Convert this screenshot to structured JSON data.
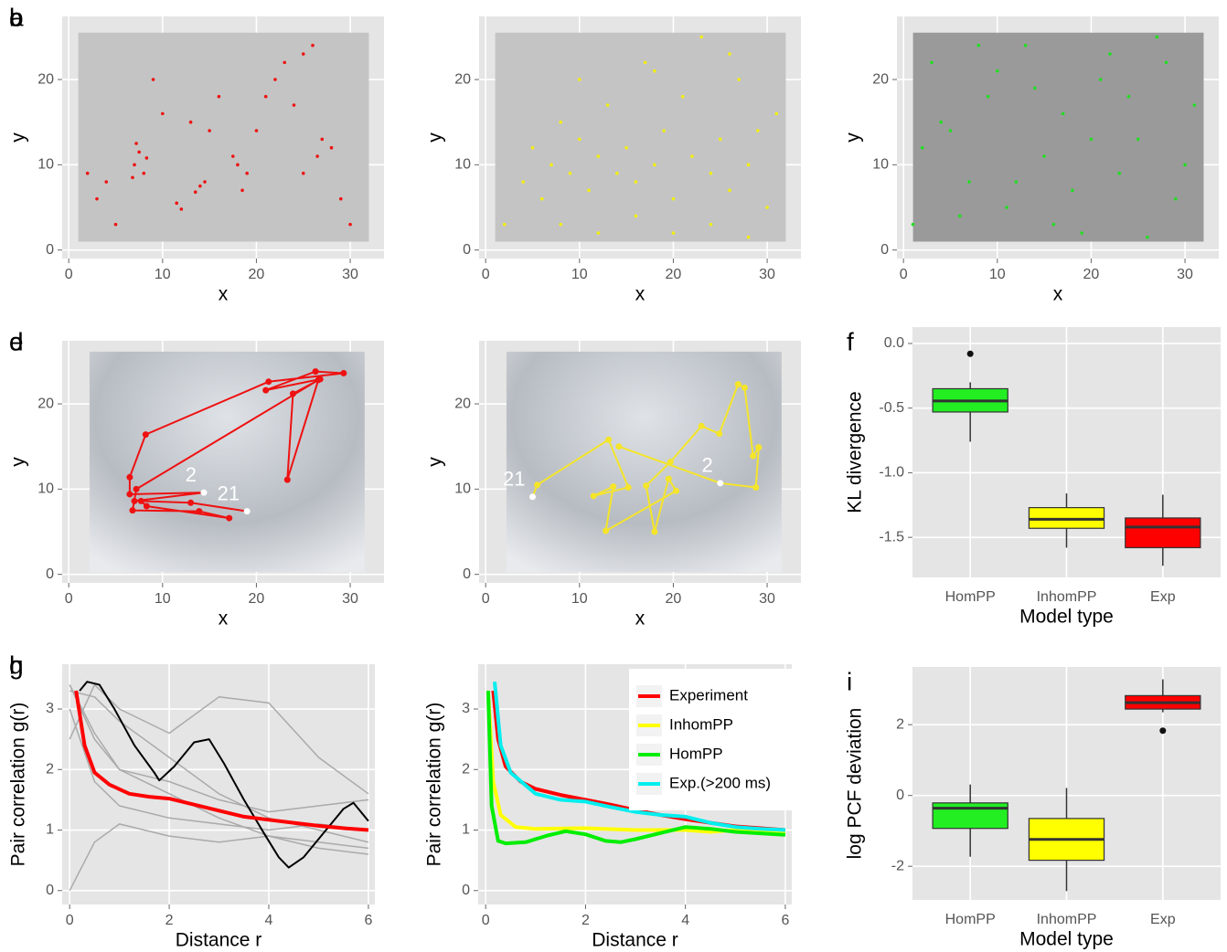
{
  "chart_data": [
    {
      "panel_label": "a",
      "type": "scatter",
      "x_label": "x",
      "y_label": "y",
      "color": "#ee1111",
      "xlim": [
        -0.7,
        33.6
      ],
      "ylim": [
        -1,
        27.4
      ],
      "xticks": [
        0,
        10,
        20,
        30
      ],
      "yticks": [
        0,
        10,
        20
      ],
      "grid": true,
      "x": [
        7,
        7.5,
        8,
        6.8,
        7.2,
        8.3,
        12,
        11.5,
        14,
        13.5,
        14.5,
        18,
        18.5,
        17.5,
        19,
        22,
        21,
        23,
        25,
        26,
        27,
        26.5,
        25,
        28,
        4,
        3,
        5,
        10,
        13,
        16,
        20,
        24,
        29,
        30,
        2,
        9,
        15
      ],
      "values": [
        10,
        11.5,
        9,
        8.5,
        12.5,
        10.8,
        4.8,
        5.5,
        7.5,
        6.8,
        8,
        10,
        7,
        11,
        9,
        20,
        18,
        22,
        23,
        24,
        13,
        11,
        9,
        12,
        8,
        6,
        3,
        16,
        15,
        18,
        14,
        17,
        6,
        3,
        9,
        20,
        14
      ]
    },
    {
      "panel_label": "b",
      "type": "scatter",
      "x_label": "x",
      "y_label": "y",
      "color": "#f2ee10",
      "xlim": [
        -0.7,
        33.6
      ],
      "ylim": [
        -1,
        27.4
      ],
      "xticks": [
        0,
        10,
        20,
        30
      ],
      "yticks": [
        0,
        10,
        20
      ],
      "grid": true,
      "x": [
        2,
        4,
        5,
        6,
        7,
        8,
        9,
        10,
        11,
        12,
        13,
        14,
        15,
        16,
        17,
        18,
        19,
        20,
        21,
        22,
        23,
        24,
        25,
        26,
        27,
        28,
        29,
        30,
        31,
        8,
        12,
        16,
        20,
        24,
        28,
        10,
        18,
        26
      ],
      "values": [
        3,
        8,
        12,
        6,
        10,
        15,
        9,
        13,
        7,
        11,
        17,
        9,
        12,
        8,
        22,
        10,
        14,
        6,
        18,
        11,
        25,
        9,
        13,
        7,
        20,
        10,
        14,
        5,
        16,
        3,
        2,
        4,
        2,
        3,
        1.5,
        20,
        21,
        23
      ]
    },
    {
      "panel_label": "c",
      "type": "scatter",
      "x_label": "x",
      "y_label": "y",
      "color": "#22dd22",
      "xlim": [
        -0.7,
        33.6
      ],
      "ylim": [
        -1,
        27.4
      ],
      "xticks": [
        0,
        10,
        20,
        30
      ],
      "yticks": [
        0,
        10,
        20
      ],
      "grid": true,
      "x": [
        1,
        3,
        5,
        7,
        9,
        11,
        13,
        15,
        17,
        19,
        21,
        23,
        25,
        27,
        29,
        31,
        2,
        6,
        10,
        14,
        18,
        22,
        26,
        30,
        4,
        8,
        12,
        16,
        20,
        24,
        28
      ],
      "values": [
        3,
        22,
        14,
        8,
        18,
        5,
        24,
        11,
        16,
        2,
        20,
        9,
        13,
        25,
        6,
        17,
        12,
        4,
        21,
        19,
        7,
        23,
        1.5,
        10,
        15,
        24,
        8,
        3,
        13,
        18,
        22
      ]
    },
    {
      "panel_label": "d",
      "type": "scanpath",
      "x_label": "x",
      "y_label": "y",
      "color": "#ee1111",
      "xlim": [
        -0.7,
        33.6
      ],
      "ylim": [
        -1,
        27.4
      ],
      "xticks": [
        0,
        10,
        20,
        30
      ],
      "yticks": [
        0,
        10,
        20
      ],
      "grid": true,
      "x": [
        7,
        14.4,
        6.5,
        6.5,
        8.2,
        21.3,
        29.3,
        26.3,
        21,
        26.8,
        23.9,
        23.3,
        26.6,
        7.2,
        6.8,
        13.9,
        17.1,
        8.3,
        7.7,
        13,
        19
      ],
      "values": [
        8.6,
        9.6,
        9.4,
        11.4,
        16.4,
        22.6,
        23.6,
        23.8,
        21.6,
        22.9,
        21.2,
        11.1,
        22.8,
        10,
        7.5,
        7.4,
        6.6,
        8,
        8.6,
        8.4,
        7.4
      ],
      "annotations": [
        "2",
        "21"
      ]
    },
    {
      "panel_label": "e",
      "type": "scanpath",
      "x_label": "x",
      "y_label": "y",
      "color": "#f5e52a",
      "xlim": [
        -0.7,
        33.6
      ],
      "ylim": [
        -1,
        27.4
      ],
      "xticks": [
        0,
        10,
        20,
        30
      ],
      "yticks": [
        0,
        10,
        20
      ],
      "grid": true,
      "x": [
        14.2,
        25,
        28.8,
        29.1,
        28.5,
        27.6,
        26.9,
        24.9,
        23,
        19.7,
        17.1,
        18,
        19.5,
        20.3,
        12.8,
        13.6,
        11.5,
        15.2,
        13.1,
        5.5,
        5
      ],
      "values": [
        15,
        10.7,
        10.2,
        14.9,
        13.9,
        21.9,
        22.3,
        16.5,
        17.4,
        13.2,
        10.4,
        5,
        11.2,
        9.8,
        5.1,
        10.3,
        9.2,
        10.2,
        15.8,
        10.5,
        9.1
      ],
      "annotations": [
        "2",
        "21"
      ]
    },
    {
      "panel_label": "f",
      "type": "box",
      "x_label": "Model type",
      "y_label": "KL divergence",
      "ylim": [
        -1.81,
        0.127
      ],
      "yticks": [
        {
          "value": 0,
          "label": "0.0"
        },
        -0.5,
        {
          "value": -1,
          "label": "-1.0"
        },
        -1.5
      ],
      "grid": true,
      "categories": [
        "HomPP",
        "InhomPP",
        "Exp"
      ],
      "boxes": [
        {
          "color": "#22ee22",
          "whisker_low": -0.76,
          "q1": -0.53,
          "median": -0.445,
          "q3": -0.35,
          "whisker_high": -0.3,
          "outliers": [
            -0.08
          ]
        },
        {
          "color": "#ffff00",
          "whisker_low": -1.58,
          "q1": -1.43,
          "median": -1.36,
          "q3": -1.27,
          "whisker_high": -1.16,
          "outliers": []
        },
        {
          "color": "#ff0000",
          "whisker_low": -1.72,
          "q1": -1.58,
          "median": -1.42,
          "q3": -1.35,
          "whisker_high": -1.17,
          "outliers": []
        }
      ]
    },
    {
      "panel_label": "g",
      "type": "line",
      "x_label": "Distance  r",
      "y_label": "Pair correlation  g(r)",
      "xlim": [
        -0.15,
        6.13
      ],
      "ylim": [
        -0.23,
        3.74
      ],
      "xticks": [
        0,
        2,
        4,
        6
      ],
      "yticks": [
        0,
        1,
        2,
        3
      ],
      "grid": true,
      "series": [
        {
          "color": "#aaaaaa",
          "x": [
            0,
            0.5,
            1,
            2,
            3,
            4,
            5,
            6
          ],
          "values": [
            3.4,
            2.5,
            2,
            1.6,
            1.2,
            0.9,
            0.8,
            0.7
          ]
        },
        {
          "color": "#aaaaaa",
          "x": [
            0,
            0.5,
            1,
            2,
            3,
            4,
            5,
            6
          ],
          "values": [
            3.3,
            3.2,
            2.8,
            2.2,
            1.6,
            1.2,
            1,
            0.8
          ]
        },
        {
          "color": "#aaaaaa",
          "x": [
            0,
            0.5,
            1,
            2,
            3,
            4,
            5,
            6
          ],
          "values": [
            3,
            1.8,
            1.4,
            1.2,
            1.1,
            1,
            1.1,
            1
          ]
        },
        {
          "color": "#aaaaaa",
          "x": [
            0,
            0.5,
            1,
            2,
            3,
            4,
            5,
            6
          ],
          "values": [
            2.5,
            3.4,
            3,
            2.6,
            3.2,
            3.1,
            2.2,
            1.6
          ]
        },
        {
          "color": "#aaaaaa",
          "x": [
            0,
            0.5,
            1,
            2,
            3,
            4,
            5,
            6
          ],
          "values": [
            0,
            0.8,
            1.1,
            0.9,
            0.8,
            0.9,
            0.7,
            0.6
          ]
        },
        {
          "color": "#aaaaaa",
          "x": [
            0,
            0.5,
            1,
            2,
            3,
            4,
            5,
            6
          ],
          "values": [
            3.4,
            2.6,
            2,
            1.8,
            1.5,
            1.3,
            1.4,
            1.5
          ]
        },
        {
          "color": "#000000",
          "x": [
            0.2,
            0.35,
            0.6,
            0.9,
            1.3,
            1.7,
            1.8,
            2.1,
            2.5,
            2.8,
            3.1,
            3.5,
            3.9,
            4.2,
            4.4,
            4.7,
            5.1,
            5.5,
            5.7,
            6
          ],
          "values": [
            3.3,
            3.45,
            3.4,
            3,
            2.4,
            1.95,
            1.82,
            2.05,
            2.45,
            2.5,
            2.1,
            1.5,
            0.95,
            0.55,
            0.38,
            0.55,
            0.95,
            1.35,
            1.45,
            1.15
          ]
        },
        {
          "color": "#ff0000",
          "x": [
            0.13,
            0.3,
            0.5,
            0.8,
            1.2,
            1.6,
            2,
            2.5,
            3,
            3.5,
            4,
            4.5,
            5,
            5.5,
            6
          ],
          "values": [
            3.3,
            2.4,
            1.95,
            1.75,
            1.6,
            1.55,
            1.52,
            1.42,
            1.32,
            1.22,
            1.17,
            1.12,
            1.07,
            1.03,
            1
          ]
        }
      ]
    },
    {
      "panel_label": "h",
      "type": "line",
      "x_label": "Distance  r",
      "y_label": "Pair correlation  g(r)",
      "xlim": [
        -0.15,
        6.13
      ],
      "ylim": [
        -0.23,
        3.74
      ],
      "xticks": [
        0,
        2,
        4,
        6
      ],
      "yticks": [
        0,
        1,
        2,
        3
      ],
      "grid": true,
      "legend": "topright",
      "series": [
        {
          "name": "Experiment",
          "color": "#ff0000",
          "x": [
            0.15,
            0.25,
            0.4,
            0.7,
            1,
            1.5,
            2,
            2.5,
            3,
            3.5,
            4,
            4.5,
            5,
            5.5,
            6
          ],
          "values": [
            3.3,
            2.5,
            2.05,
            1.8,
            1.68,
            1.58,
            1.5,
            1.42,
            1.33,
            1.25,
            1.18,
            1.12,
            1.06,
            1.03,
            1
          ]
        },
        {
          "name": "InhomPP",
          "color": "#ffff00",
          "x": [
            0.05,
            0.15,
            0.3,
            0.6,
            1,
            2,
            3,
            4,
            4.5,
            5,
            5.5,
            6
          ],
          "values": [
            3.3,
            1.8,
            1.25,
            1.05,
            1.02,
            1.03,
            1,
            1,
            0.97,
            1,
            0.97,
            0.95
          ]
        },
        {
          "name": "HomPP",
          "color": "#00ee00",
          "x": [
            0.05,
            0.12,
            0.25,
            0.4,
            0.8,
            1.2,
            1.6,
            2,
            2.4,
            2.7,
            3,
            3.5,
            4,
            4.5,
            5,
            6
          ],
          "values": [
            3.3,
            1.4,
            0.82,
            0.78,
            0.8,
            0.9,
            0.98,
            0.93,
            0.82,
            0.8,
            0.85,
            0.95,
            1.05,
            1.02,
            0.97,
            0.92
          ]
        },
        {
          "name": "Exp.(>200 ms)",
          "color": "#00eeee",
          "x": [
            0.18,
            0.3,
            0.5,
            1,
            1.5,
            2,
            2.5,
            3,
            3.5,
            4,
            4.5,
            5,
            5.5,
            6
          ],
          "values": [
            3.45,
            2.4,
            1.95,
            1.6,
            1.5,
            1.47,
            1.38,
            1.3,
            1.25,
            1.22,
            1.12,
            1.05,
            1.02,
            1
          ]
        }
      ]
    },
    {
      "panel_label": "i",
      "type": "box",
      "x_label": "Model type",
      "y_label": "log PCF deviation",
      "ylim": [
        -2.95,
        3.63
      ],
      "yticks": [
        -2,
        0,
        2
      ],
      "grid": true,
      "categories": [
        "HomPP",
        "InhomPP",
        "Exp"
      ],
      "boxes": [
        {
          "color": "#22ee22",
          "whisker_low": -1.73,
          "q1": -0.93,
          "median": -0.36,
          "q3": -0.21,
          "whisker_high": 0.31,
          "outliers": []
        },
        {
          "color": "#ffff00",
          "whisker_low": -2.7,
          "q1": -1.83,
          "median": -1.24,
          "q3": -0.65,
          "whisker_high": 0.21,
          "outliers": []
        },
        {
          "color": "#ff0000",
          "whisker_low": 2.35,
          "q1": 2.44,
          "median": 2.62,
          "q3": 2.82,
          "whisker_high": 3.28,
          "outliers": [
            1.83
          ]
        }
      ]
    }
  ]
}
